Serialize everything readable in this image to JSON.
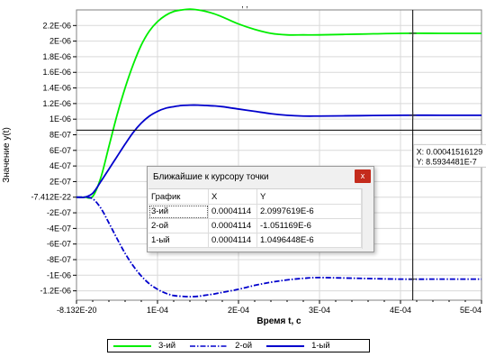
{
  "chart_data": {
    "type": "line",
    "title": ", ,",
    "xlabel": "Время t, с",
    "ylabel": "Значение y(t)",
    "xlim": [
      -8.132e-20,
      0.0005
    ],
    "ylim": [
      -1.32e-06,
      2.4e-06
    ],
    "x_ticks": [
      {
        "value": -8.132e-20,
        "label": "-8.132E-20"
      },
      {
        "value": 0.0001,
        "label": "1E-04"
      },
      {
        "value": 0.0002,
        "label": "2E-04"
      },
      {
        "value": 0.0003,
        "label": "3E-04"
      },
      {
        "value": 0.0004,
        "label": "4E-04"
      },
      {
        "value": 0.0005,
        "label": "5E-04"
      }
    ],
    "y_ticks": [
      {
        "value": 2.2e-06,
        "label": "2.2E-06"
      },
      {
        "value": 2e-06,
        "label": "2E-06"
      },
      {
        "value": 1.8e-06,
        "label": "1.8E-06"
      },
      {
        "value": 1.6e-06,
        "label": "1.6E-06"
      },
      {
        "value": 1.4e-06,
        "label": "1.4E-06"
      },
      {
        "value": 1.2e-06,
        "label": "1.2E-06"
      },
      {
        "value": 1e-06,
        "label": "1E-06"
      },
      {
        "value": 8e-07,
        "label": "8E-07"
      },
      {
        "value": 6e-07,
        "label": "6E-07"
      },
      {
        "value": 4e-07,
        "label": "4E-07"
      },
      {
        "value": 2e-07,
        "label": "2E-07"
      },
      {
        "value": -7.412e-22,
        "label": "-7.412E-22"
      },
      {
        "value": -2e-07,
        "label": "-2E-07"
      },
      {
        "value": -4e-07,
        "label": "-4E-07"
      },
      {
        "value": -6e-07,
        "label": "-6E-07"
      },
      {
        "value": -8e-07,
        "label": "-8E-07"
      },
      {
        "value": -1e-06,
        "label": "-1E-06"
      },
      {
        "value": -1.2e-06,
        "label": "-1.2E-06"
      }
    ],
    "grid": true,
    "legend_position": "bottom",
    "series": [
      {
        "name": "3-ий",
        "color": "#00ee00",
        "style": "solid",
        "x": [
          0,
          1e-05,
          2e-05,
          3e-05,
          4e-05,
          5e-05,
          6e-05,
          7e-05,
          8e-05,
          9e-05,
          0.0001,
          0.00011,
          0.00012,
          0.00013,
          0.00014,
          0.00015,
          0.00016,
          0.00017,
          0.00018,
          0.0002,
          0.00022,
          0.00024,
          0.00026,
          0.00028,
          0.0003,
          0.00035,
          0.0004,
          0.00045,
          0.0005
        ],
        "y": [
          0,
          0.0,
          1e-08,
          2.5e-07,
          6.5e-07,
          1.05e-06,
          1.4e-06,
          1.7e-06,
          1.95e-06,
          2.13e-06,
          2.25e-06,
          2.33e-06,
          2.38e-06,
          2.4e-06,
          2.41e-06,
          2.4e-06,
          2.38e-06,
          2.35e-06,
          2.31e-06,
          2.22e-06,
          2.15e-06,
          2.1e-06,
          2.08e-06,
          2.08e-06,
          2.08e-06,
          2.09e-06,
          2.1e-06,
          2.1e-06,
          2.1e-06
        ]
      },
      {
        "name": "2-ой",
        "color": "#0000cc",
        "style": "dashdot",
        "x": [
          0,
          1e-05,
          2e-05,
          3e-05,
          4e-05,
          5e-05,
          6e-05,
          7e-05,
          8e-05,
          9e-05,
          0.0001,
          0.00011,
          0.00012,
          0.00013,
          0.00014,
          0.00015,
          0.00016,
          0.00017,
          0.00018,
          0.0002,
          0.00022,
          0.00024,
          0.00026,
          0.00028,
          0.0003,
          0.00035,
          0.0004,
          0.00045,
          0.0005
        ],
        "y": [
          0,
          0.0,
          -2e-08,
          -1.4e-07,
          -3.3e-07,
          -5.3e-07,
          -7.2e-07,
          -8.8e-07,
          -1.01e-06,
          -1.11e-06,
          -1.18e-06,
          -1.23e-06,
          -1.26e-06,
          -1.27e-06,
          -1.275e-06,
          -1.27e-06,
          -1.255e-06,
          -1.24e-06,
          -1.22e-06,
          -1.18e-06,
          -1.13e-06,
          -1.09e-06,
          -1.06e-06,
          -1.04e-06,
          -1.03e-06,
          -1.04e-06,
          -1.05e-06,
          -1.05e-06,
          -1.05e-06
        ]
      },
      {
        "name": "1-ый",
        "color": "#0000cc",
        "style": "solid",
        "x": [
          0,
          1e-05,
          2e-05,
          3e-05,
          4e-05,
          5e-05,
          6e-05,
          7e-05,
          8e-05,
          9e-05,
          0.0001,
          0.00011,
          0.00012,
          0.00013,
          0.00014,
          0.00015,
          0.00016,
          0.00017,
          0.00018,
          0.0002,
          0.00022,
          0.00024,
          0.00026,
          0.00028,
          0.0003,
          0.00035,
          0.0004,
          0.00045,
          0.0005
        ],
        "y": [
          0,
          0.0,
          5e-08,
          2e-07,
          3.6e-07,
          5.2e-07,
          6.8e-07,
          8.3e-07,
          9.5e-07,
          1.04e-06,
          1.1e-06,
          1.14e-06,
          1.16e-06,
          1.175e-06,
          1.18e-06,
          1.18e-06,
          1.175e-06,
          1.17e-06,
          1.16e-06,
          1.13e-06,
          1.1e-06,
          1.07e-06,
          1.05e-06,
          1.04e-06,
          1.04e-06,
          1.045e-06,
          1.05e-06,
          1.05e-06,
          1.05e-06
        ]
      }
    ],
    "cursor": {
      "x": 0.00041516129,
      "y": 8.5934481e-07,
      "label_x": "X: 0.00041516129",
      "label_y": "Y: 8.5934481E-7"
    }
  },
  "dialog": {
    "title": "Ближайшие к курсору точки",
    "close_label": "x",
    "columns": [
      "График",
      "X",
      "Y"
    ],
    "rows": [
      {
        "graph": "3-ий",
        "x": "0.0004114",
        "y": "2.0997619E-6"
      },
      {
        "graph": "2-ой",
        "x": "0.0004114",
        "y": "-1.051169E-6"
      },
      {
        "graph": "1-ый",
        "x": "0.0004114",
        "y": "1.0496448E-6"
      }
    ]
  },
  "legend": {
    "items": [
      {
        "label": "3-ий",
        "color": "#00ee00",
        "style": "solid"
      },
      {
        "label": "2-ой",
        "color": "#0000cc",
        "style": "dashdot"
      },
      {
        "label": "1-ый",
        "color": "#0000cc",
        "style": "solid"
      }
    ]
  }
}
